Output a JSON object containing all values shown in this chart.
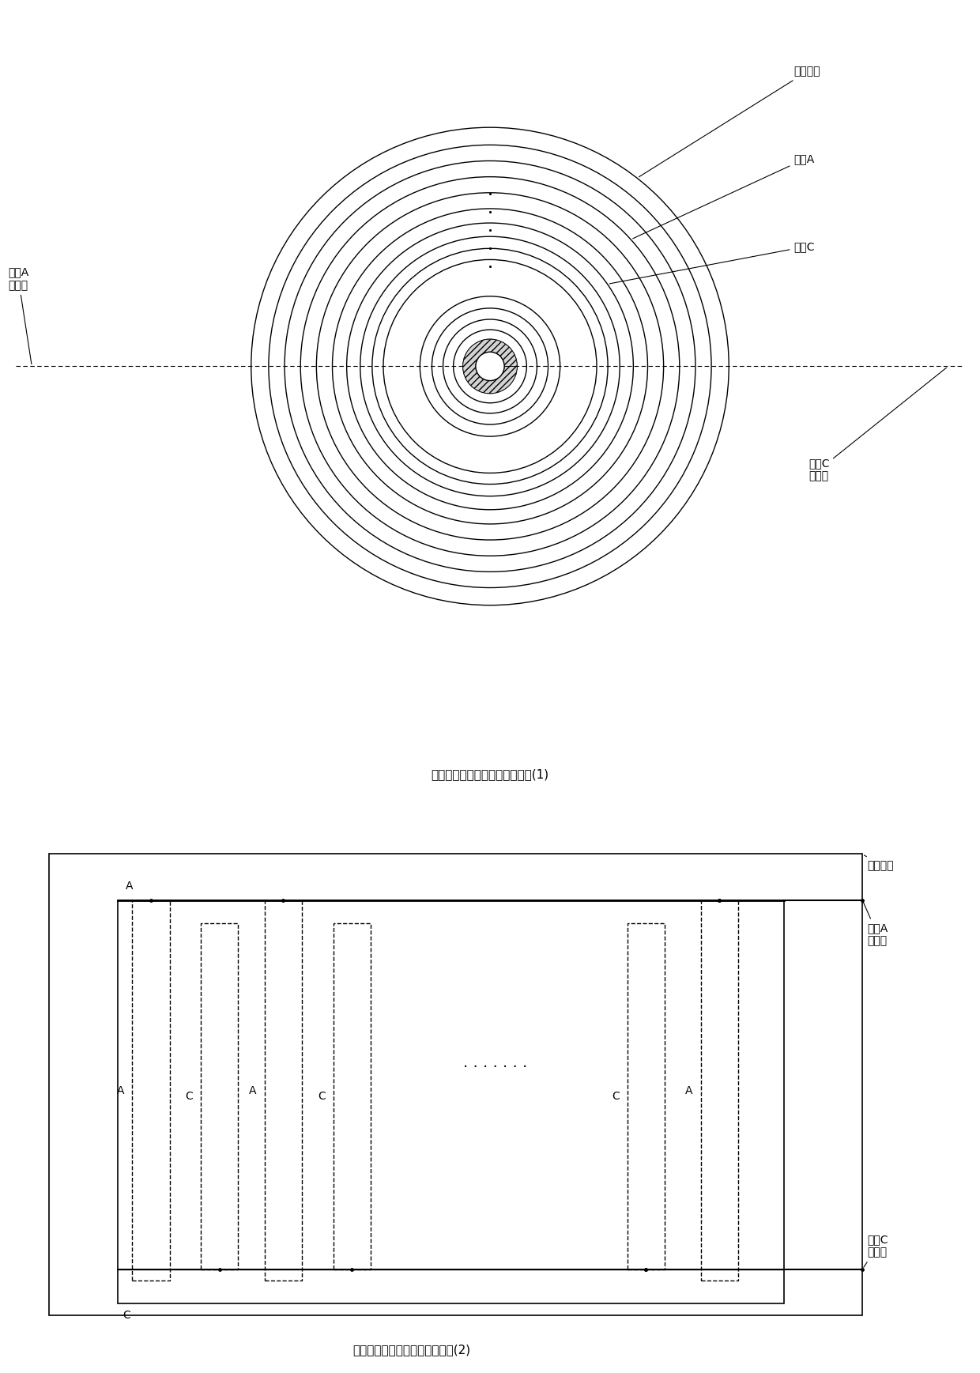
{
  "fig_width": 12.4,
  "fig_height": 17.37,
  "bg_color": "#ffffff",
  "title1": "卷线型电极体的充电极板示意图(1)",
  "title2": "叠层型电极体的充电极板示意图(2)",
  "label_chongdian_jiban": "充电极板",
  "label_dianji_A": "电极A",
  "label_dianji_C": "电极C",
  "label_A_lead": "电极A\n引出线",
  "label_C_lead": "电极C\n引出线",
  "label_chongdian_dianji": "充电电极",
  "label_A_lead2": "电极A\n引出线",
  "label_C_lead2": "电极C\n引出线"
}
